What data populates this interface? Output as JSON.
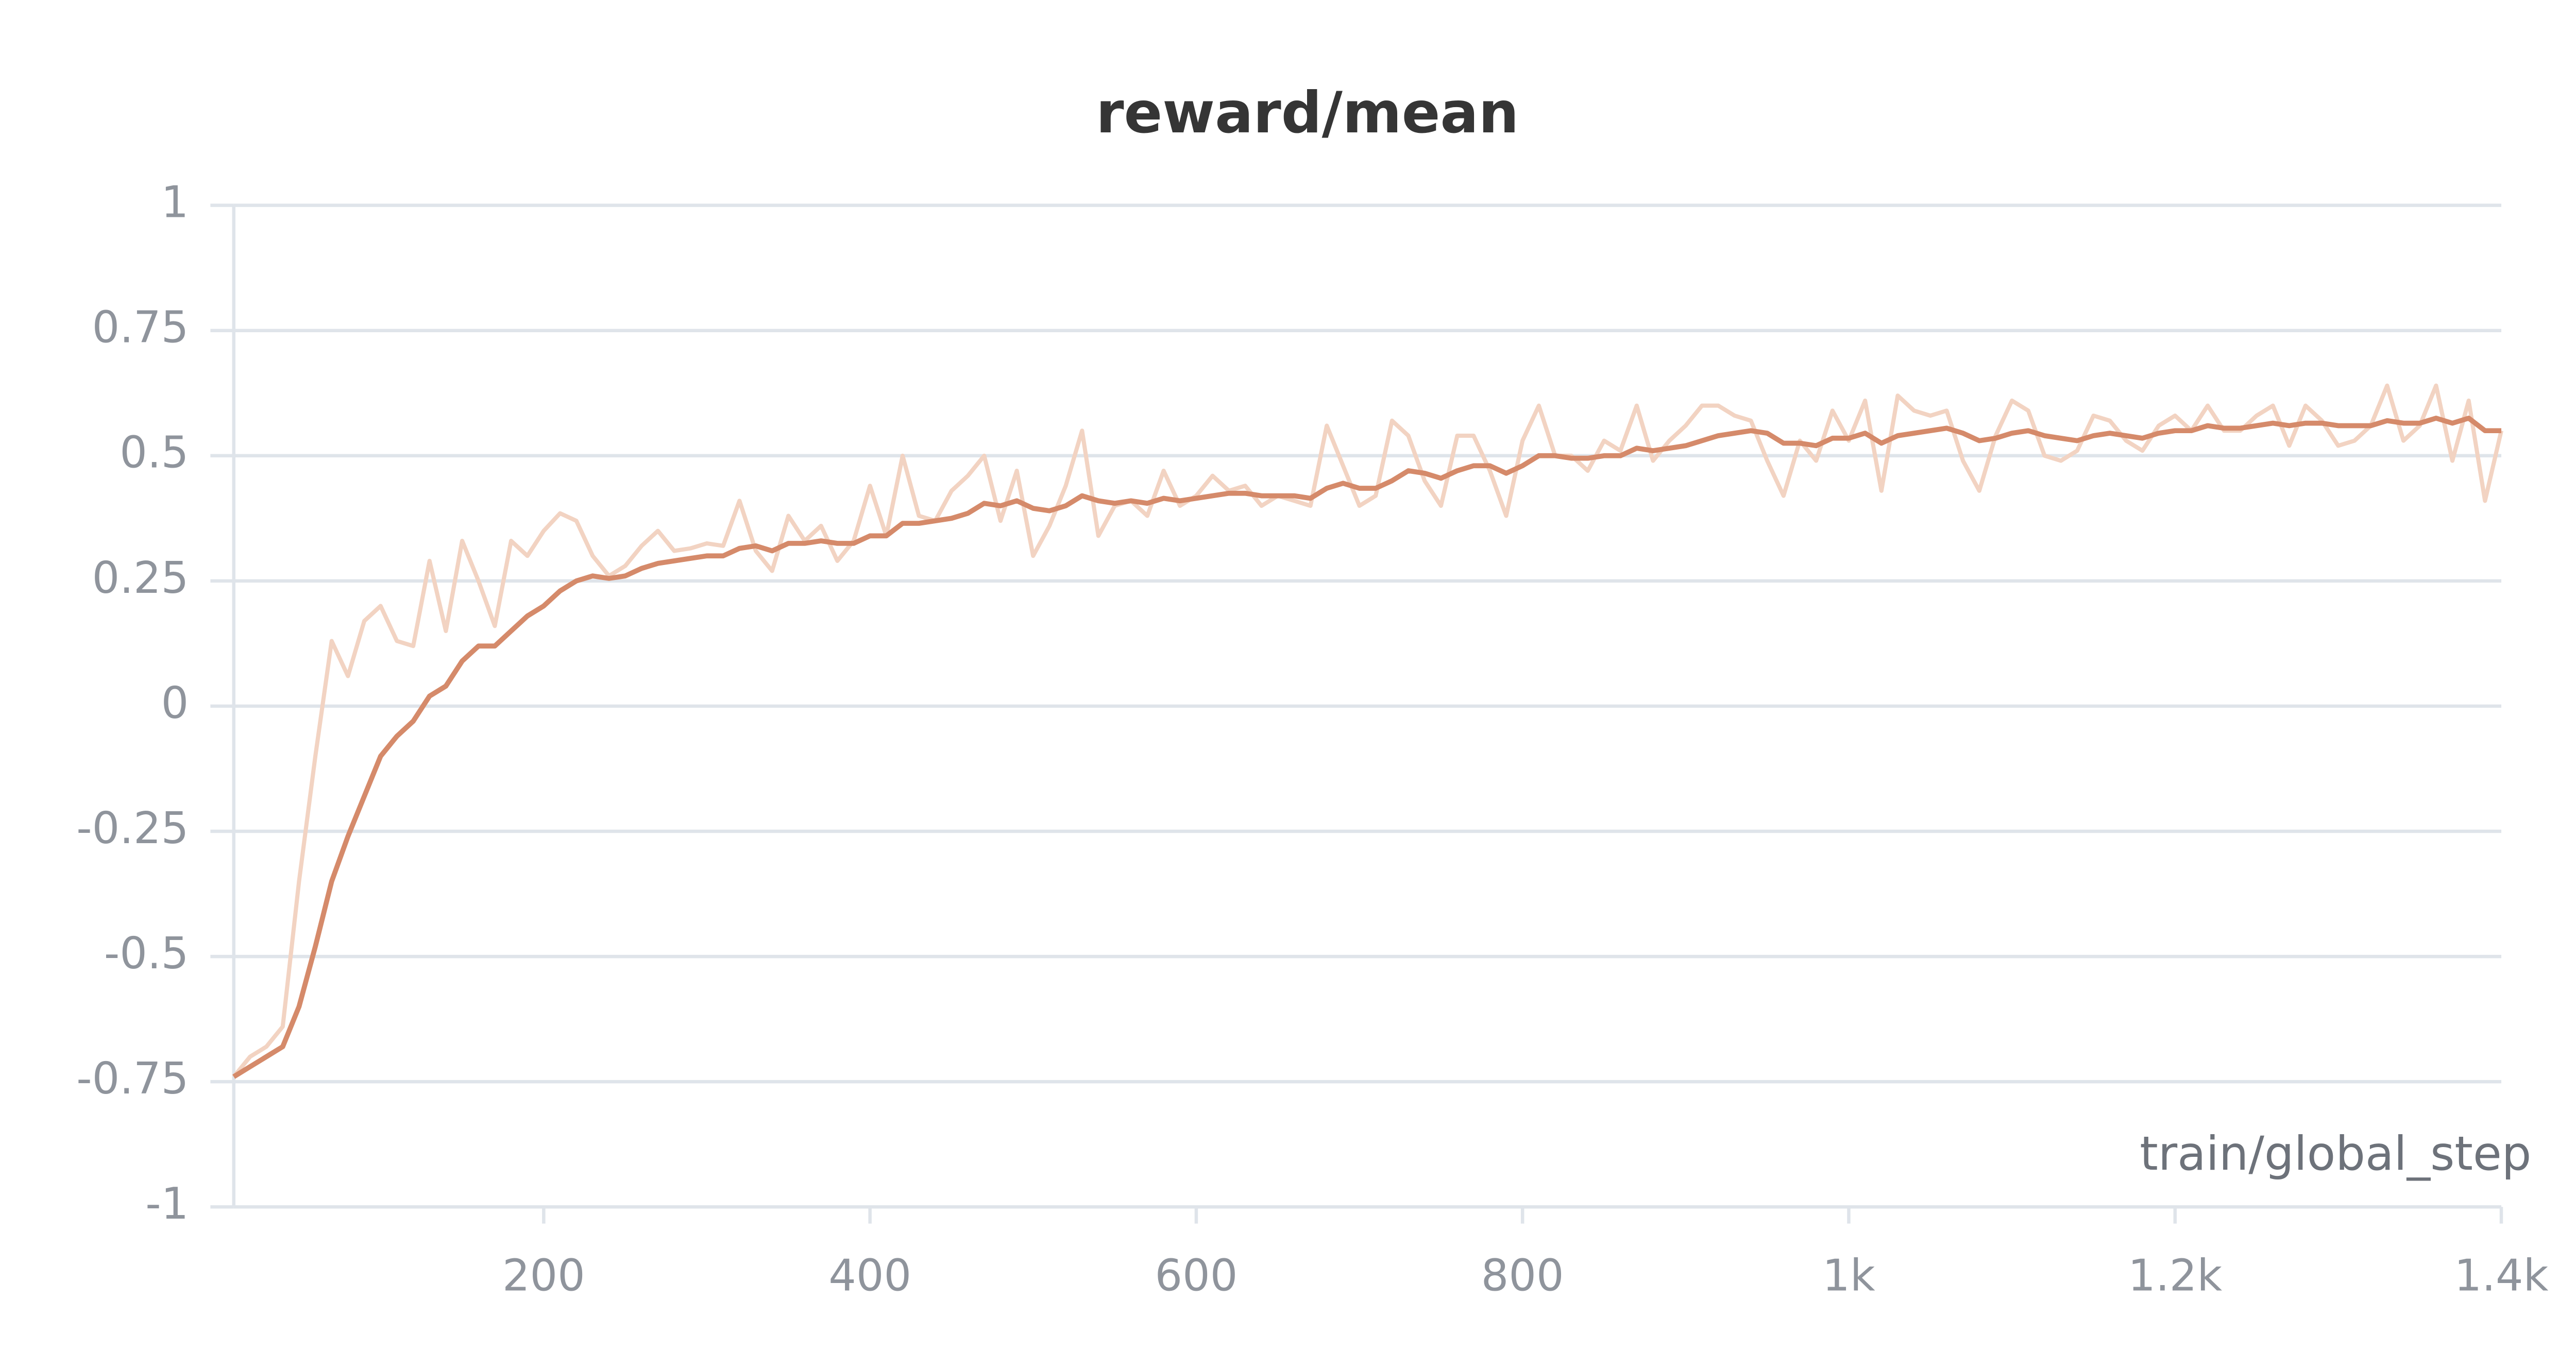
{
  "chart_data": {
    "type": "line",
    "title": "reward/mean",
    "x_label": "train/global_step",
    "x": [
      10,
      20,
      30,
      40,
      50,
      60,
      70,
      80,
      90,
      100,
      110,
      120,
      130,
      140,
      150,
      160,
      170,
      180,
      190,
      200,
      210,
      220,
      230,
      240,
      250,
      260,
      270,
      280,
      290,
      300,
      310,
      320,
      330,
      340,
      350,
      360,
      370,
      380,
      390,
      400,
      410,
      420,
      430,
      440,
      450,
      460,
      470,
      480,
      490,
      500,
      510,
      520,
      530,
      540,
      550,
      560,
      570,
      580,
      590,
      600,
      610,
      620,
      630,
      640,
      650,
      660,
      670,
      680,
      690,
      700,
      710,
      720,
      730,
      740,
      750,
      760,
      770,
      780,
      790,
      800,
      810,
      820,
      830,
      840,
      850,
      860,
      870,
      880,
      890,
      900,
      910,
      920,
      930,
      940,
      950,
      960,
      970,
      980,
      990,
      1000,
      1010,
      1020,
      1030,
      1040,
      1050,
      1060,
      1070,
      1080,
      1090,
      1100,
      1110,
      1120,
      1130,
      1140,
      1150,
      1160,
      1170,
      1180,
      1190,
      1200,
      1210,
      1220,
      1230,
      1240,
      1250,
      1260,
      1270,
      1280,
      1290,
      1300,
      1310,
      1320,
      1330,
      1340,
      1350,
      1360,
      1370,
      1380,
      1390,
      1400
    ],
    "series": [
      {
        "color": "#f2d3c2",
        "values": [
          -0.74,
          -0.7,
          -0.68,
          -0.64,
          -0.35,
          -0.1,
          0.13,
          0.06,
          0.17,
          0.2,
          0.13,
          0.12,
          0.29,
          0.15,
          0.33,
          0.25,
          0.16,
          0.33,
          0.3,
          0.35,
          0.385,
          0.37,
          0.3,
          0.26,
          0.28,
          0.32,
          0.35,
          0.31,
          0.315,
          0.325,
          0.32,
          0.41,
          0.31,
          0.27,
          0.38,
          0.33,
          0.36,
          0.29,
          0.33,
          0.44,
          0.34,
          0.5,
          0.38,
          0.37,
          0.43,
          0.46,
          0.5,
          0.37,
          0.47,
          0.3,
          0.36,
          0.44,
          0.55,
          0.34,
          0.4,
          0.41,
          0.38,
          0.47,
          0.4,
          0.42,
          0.46,
          0.43,
          0.44,
          0.4,
          0.42,
          0.41,
          0.4,
          0.56,
          0.48,
          0.4,
          0.42,
          0.57,
          0.54,
          0.45,
          0.4,
          0.54,
          0.54,
          0.47,
          0.38,
          0.53,
          0.6,
          0.5,
          0.5,
          0.47,
          0.53,
          0.51,
          0.6,
          0.49,
          0.53,
          0.56,
          0.6,
          0.6,
          0.58,
          0.57,
          0.49,
          0.42,
          0.53,
          0.49,
          0.59,
          0.53,
          0.61,
          0.43,
          0.62,
          0.59,
          0.58,
          0.59,
          0.49,
          0.43,
          0.54,
          0.61,
          0.59,
          0.5,
          0.49,
          0.51,
          0.58,
          0.57,
          0.53,
          0.51,
          0.56,
          0.58,
          0.55,
          0.6,
          0.55,
          0.55,
          0.58,
          0.6,
          0.52,
          0.6,
          0.57,
          0.52,
          0.53,
          0.56,
          0.64,
          0.53,
          0.56,
          0.64,
          0.49,
          0.61,
          0.41,
          0.55
        ]
      },
      {
        "color": "#d58a6a",
        "values": [
          -0.74,
          -0.72,
          -0.7,
          -0.68,
          -0.6,
          -0.48,
          -0.35,
          -0.26,
          -0.18,
          -0.1,
          -0.06,
          -0.03,
          0.02,
          0.04,
          0.09,
          0.12,
          0.12,
          0.15,
          0.18,
          0.2,
          0.23,
          0.25,
          0.26,
          0.255,
          0.26,
          0.275,
          0.285,
          0.29,
          0.295,
          0.3,
          0.3,
          0.315,
          0.32,
          0.31,
          0.325,
          0.325,
          0.33,
          0.325,
          0.325,
          0.34,
          0.34,
          0.365,
          0.365,
          0.37,
          0.375,
          0.385,
          0.405,
          0.4,
          0.41,
          0.395,
          0.39,
          0.4,
          0.42,
          0.41,
          0.405,
          0.41,
          0.405,
          0.415,
          0.41,
          0.415,
          0.42,
          0.425,
          0.425,
          0.42,
          0.42,
          0.42,
          0.415,
          0.435,
          0.445,
          0.435,
          0.435,
          0.45,
          0.47,
          0.465,
          0.455,
          0.47,
          0.48,
          0.48,
          0.465,
          0.48,
          0.5,
          0.5,
          0.495,
          0.495,
          0.5,
          0.5,
          0.515,
          0.51,
          0.515,
          0.52,
          0.53,
          0.54,
          0.545,
          0.55,
          0.545,
          0.525,
          0.525,
          0.52,
          0.535,
          0.535,
          0.545,
          0.525,
          0.54,
          0.545,
          0.55,
          0.555,
          0.545,
          0.53,
          0.535,
          0.545,
          0.55,
          0.54,
          0.535,
          0.53,
          0.54,
          0.545,
          0.54,
          0.535,
          0.545,
          0.55,
          0.55,
          0.56,
          0.555,
          0.555,
          0.56,
          0.565,
          0.56,
          0.565,
          0.565,
          0.56,
          0.56,
          0.56,
          0.57,
          0.565,
          0.565,
          0.575,
          0.565,
          0.575,
          0.55,
          0.55
        ]
      }
    ],
    "xlim": [
      10,
      1400
    ],
    "xticks": [
      200,
      400,
      600,
      800,
      {
        "value": 1000,
        "label": "1k"
      },
      {
        "value": 1200,
        "label": "1.2k"
      },
      {
        "value": 1400,
        "label": "1.4k"
      }
    ],
    "ylim": [
      -1,
      1
    ],
    "yticks": [
      1,
      0.75,
      0.5,
      0.25,
      0,
      -0.25,
      -0.5,
      -0.75,
      -1
    ],
    "grid": true
  }
}
